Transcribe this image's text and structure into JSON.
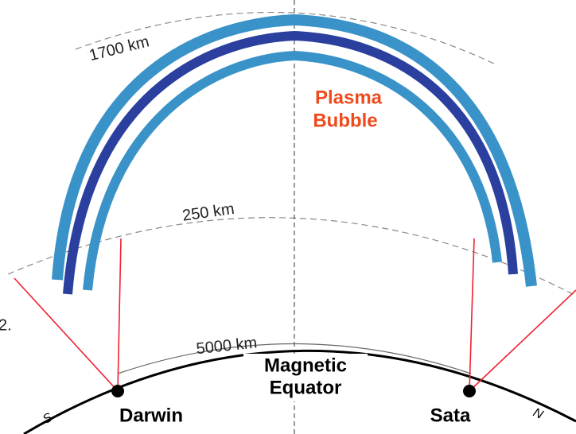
{
  "altitudes": [
    "1700 km",
    "250 km",
    "5000 km"
  ],
  "bubble_label": [
    "Plasma",
    "Bubble"
  ],
  "equator_label": [
    "Magnetic",
    "Equator"
  ],
  "stations": [
    "Darwin",
    "Sata"
  ],
  "directions": [
    "S",
    "N"
  ],
  "margin_text": "2."
}
